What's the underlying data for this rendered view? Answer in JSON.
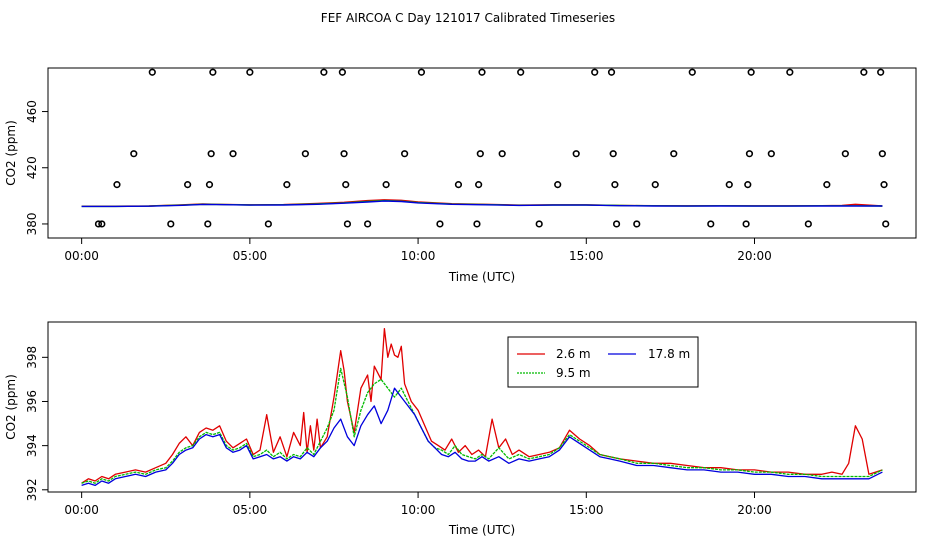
{
  "page": {
    "title": "FEF AIRCOA C  Day 121017  Calibrated Timeseries"
  },
  "colors": {
    "s1": "#e00000",
    "s2": "#00bb00",
    "s3": "#0000dd",
    "axis": "#000000"
  },
  "chart_data": [
    {
      "type": "scatter+line",
      "xlabel": "Time (UTC)",
      "ylabel": "CO2 (ppm)",
      "xlim": [
        -1.0,
        24.8
      ],
      "ylim": [
        370,
        491
      ],
      "xticks": [
        0,
        5,
        10,
        15,
        20
      ],
      "xtick_labels": [
        "00:00",
        "05:00",
        "10:00",
        "15:00",
        "20:00"
      ],
      "yticks": [
        380,
        420,
        460
      ],
      "ytick_labels": [
        "380",
        "420",
        "460"
      ],
      "scatter_points": [
        [
          0.5,
          380
        ],
        [
          0.6,
          380
        ],
        [
          1.05,
          408
        ],
        [
          1.55,
          430
        ],
        [
          2.1,
          488
        ],
        [
          2.65,
          380
        ],
        [
          3.15,
          408
        ],
        [
          3.75,
          380
        ],
        [
          3.8,
          408
        ],
        [
          3.85,
          430
        ],
        [
          3.9,
          488
        ],
        [
          4.5,
          430
        ],
        [
          5.0,
          488
        ],
        [
          5.55,
          380
        ],
        [
          6.1,
          408
        ],
        [
          6.65,
          430
        ],
        [
          7.2,
          488
        ],
        [
          7.75,
          488
        ],
        [
          7.8,
          430
        ],
        [
          7.85,
          408
        ],
        [
          7.9,
          380
        ],
        [
          8.5,
          380
        ],
        [
          9.05,
          408
        ],
        [
          9.6,
          430
        ],
        [
          10.1,
          488
        ],
        [
          10.65,
          380
        ],
        [
          11.2,
          408
        ],
        [
          11.75,
          380
        ],
        [
          11.8,
          408
        ],
        [
          11.85,
          430
        ],
        [
          11.9,
          488
        ],
        [
          12.5,
          430
        ],
        [
          13.05,
          488
        ],
        [
          13.6,
          380
        ],
        [
          14.15,
          408
        ],
        [
          14.7,
          430
        ],
        [
          15.25,
          488
        ],
        [
          15.75,
          488
        ],
        [
          15.8,
          430
        ],
        [
          15.85,
          408
        ],
        [
          15.9,
          380
        ],
        [
          16.5,
          380
        ],
        [
          17.05,
          408
        ],
        [
          17.6,
          430
        ],
        [
          18.15,
          488
        ],
        [
          18.7,
          380
        ],
        [
          19.25,
          408
        ],
        [
          19.75,
          380
        ],
        [
          19.8,
          408
        ],
        [
          19.85,
          430
        ],
        [
          19.9,
          488
        ],
        [
          20.5,
          430
        ],
        [
          21.05,
          488
        ],
        [
          21.6,
          380
        ],
        [
          22.15,
          408
        ],
        [
          22.7,
          430
        ],
        [
          23.25,
          488
        ],
        [
          23.75,
          488
        ],
        [
          23.8,
          430
        ],
        [
          23.85,
          408
        ],
        [
          23.9,
          380
        ]
      ],
      "series": [
        {
          "name": "2.6 m",
          "color": "#e00000",
          "x": [
            0.0,
            1.0,
            2.0,
            3.0,
            3.6,
            4.0,
            5.0,
            6.0,
            7.0,
            7.8,
            8.5,
            9.0,
            9.5,
            10.0,
            11.0,
            12.0,
            13.0,
            14.0,
            15.0,
            16.0,
            17.0,
            18.0,
            19.0,
            20.0,
            21.0,
            22.0,
            22.6,
            23.0,
            23.8
          ],
          "y": [
            392.6,
            392.6,
            392.8,
            393.6,
            394.2,
            394.0,
            393.6,
            393.8,
            394.6,
            395.4,
            396.6,
            397.2,
            396.8,
            395.6,
            394.4,
            394.0,
            393.4,
            393.6,
            393.6,
            393.2,
            393.0,
            392.9,
            393.0,
            392.9,
            392.9,
            393.0,
            393.2,
            394.0,
            392.8
          ]
        },
        {
          "name": "9.5 m",
          "color": "#00bb00",
          "x": [
            0.0,
            1.0,
            2.0,
            3.0,
            3.6,
            4.0,
            5.0,
            6.0,
            7.0,
            7.8,
            8.5,
            9.0,
            9.5,
            10.0,
            11.0,
            12.0,
            13.0,
            14.0,
            15.0,
            16.0,
            17.0,
            18.0,
            19.0,
            20.0,
            21.0,
            22.0,
            23.0,
            23.8
          ],
          "y": [
            392.5,
            392.5,
            392.7,
            393.4,
            394.0,
            393.9,
            393.5,
            393.6,
            394.2,
            395.0,
            396.0,
            396.6,
            396.2,
            395.2,
            394.1,
            393.8,
            393.3,
            393.5,
            393.5,
            393.1,
            392.9,
            392.8,
            392.9,
            392.8,
            392.8,
            392.9,
            392.9,
            392.8
          ]
        },
        {
          "name": "17.8 m",
          "color": "#0000dd",
          "x": [
            0.0,
            1.0,
            2.0,
            3.0,
            3.6,
            4.0,
            5.0,
            6.0,
            7.0,
            7.8,
            8.5,
            9.0,
            9.5,
            10.0,
            11.0,
            12.0,
            13.0,
            14.0,
            15.0,
            16.0,
            17.0,
            18.0,
            19.0,
            20.0,
            21.0,
            22.0,
            23.0,
            23.8
          ],
          "y": [
            392.5,
            392.5,
            392.6,
            393.3,
            393.9,
            393.8,
            393.4,
            393.5,
            394.0,
            394.8,
            395.6,
            396.3,
            396.0,
            395.0,
            394.0,
            393.6,
            393.2,
            393.4,
            393.4,
            393.0,
            392.8,
            392.7,
            392.8,
            392.7,
            392.7,
            392.8,
            392.8,
            392.8
          ]
        }
      ]
    },
    {
      "type": "line",
      "xlabel": "Time (UTC)",
      "ylabel": "CO2 (ppm)",
      "xlim": [
        -1.0,
        24.8
      ],
      "ylim": [
        391.9,
        399.6
      ],
      "xticks": [
        0,
        5,
        10,
        15,
        20
      ],
      "xtick_labels": [
        "00:00",
        "05:00",
        "10:00",
        "15:00",
        "20:00"
      ],
      "yticks": [
        392,
        394,
        396,
        398
      ],
      "ytick_labels": [
        "392",
        "394",
        "396",
        "398"
      ],
      "legend": {
        "position": "top-center",
        "entries": [
          "2.6 m",
          "17.8 m",
          "9.5 m"
        ]
      },
      "series": [
        {
          "name": "2.6 m",
          "color": "#e00000",
          "x": [
            0.0,
            0.2,
            0.4,
            0.6,
            0.8,
            1.0,
            1.3,
            1.6,
            1.9,
            2.2,
            2.5,
            2.7,
            2.9,
            3.1,
            3.3,
            3.5,
            3.7,
            3.9,
            4.1,
            4.3,
            4.5,
            4.7,
            4.9,
            5.1,
            5.3,
            5.5,
            5.7,
            5.9,
            6.1,
            6.3,
            6.5,
            6.6,
            6.7,
            6.8,
            6.9,
            7.0,
            7.1,
            7.3,
            7.5,
            7.7,
            7.8,
            7.9,
            8.1,
            8.3,
            8.5,
            8.6,
            8.7,
            8.9,
            9.0,
            9.1,
            9.2,
            9.3,
            9.4,
            9.5,
            9.6,
            9.8,
            10.0,
            10.2,
            10.4,
            10.6,
            10.8,
            11.0,
            11.2,
            11.4,
            11.6,
            11.8,
            12.0,
            12.2,
            12.4,
            12.6,
            12.8,
            13.0,
            13.3,
            13.6,
            13.9,
            14.2,
            14.5,
            14.8,
            15.1,
            15.4,
            15.7,
            16.0,
            16.5,
            17.0,
            17.5,
            18.0,
            18.5,
            19.0,
            19.5,
            20.0,
            20.5,
            21.0,
            21.5,
            22.0,
            22.3,
            22.6,
            22.8,
            23.0,
            23.2,
            23.4,
            23.6,
            23.8
          ],
          "y": [
            392.3,
            392.5,
            392.4,
            392.6,
            392.5,
            392.7,
            392.8,
            392.9,
            392.8,
            393.0,
            393.2,
            393.6,
            394.1,
            394.4,
            394.0,
            394.6,
            394.8,
            394.7,
            394.9,
            394.2,
            393.9,
            394.1,
            394.3,
            393.6,
            393.8,
            395.4,
            393.7,
            394.4,
            393.5,
            394.6,
            394.0,
            395.5,
            393.7,
            394.9,
            393.8,
            395.2,
            393.9,
            394.4,
            396.2,
            398.3,
            397.4,
            396.0,
            394.6,
            396.6,
            397.2,
            396.0,
            397.6,
            397.0,
            399.3,
            398.0,
            398.6,
            398.1,
            398.0,
            398.5,
            396.8,
            396.0,
            395.6,
            394.9,
            394.2,
            394.0,
            393.8,
            394.3,
            393.7,
            394.0,
            393.6,
            393.8,
            393.5,
            395.2,
            393.9,
            394.3,
            393.6,
            393.8,
            393.5,
            393.6,
            393.7,
            393.9,
            394.7,
            394.3,
            394.0,
            393.6,
            393.5,
            393.4,
            393.3,
            393.2,
            393.2,
            393.1,
            393.0,
            393.0,
            392.9,
            392.9,
            392.8,
            392.8,
            392.7,
            392.7,
            392.8,
            392.7,
            393.2,
            394.9,
            394.3,
            392.7,
            392.8,
            392.9
          ]
        },
        {
          "name": "9.5 m",
          "color": "#00bb00",
          "x": [
            0.0,
            0.2,
            0.4,
            0.6,
            0.8,
            1.0,
            1.3,
            1.6,
            1.9,
            2.2,
            2.5,
            2.7,
            2.9,
            3.1,
            3.3,
            3.5,
            3.7,
            3.9,
            4.1,
            4.3,
            4.5,
            4.7,
            4.9,
            5.1,
            5.3,
            5.5,
            5.7,
            5.9,
            6.1,
            6.3,
            6.5,
            6.7,
            6.9,
            7.1,
            7.3,
            7.5,
            7.7,
            7.9,
            8.1,
            8.3,
            8.5,
            8.7,
            8.9,
            9.1,
            9.3,
            9.5,
            9.7,
            9.9,
            10.1,
            10.3,
            10.5,
            10.7,
            10.9,
            11.1,
            11.3,
            11.5,
            11.7,
            11.9,
            12.1,
            12.4,
            12.7,
            13.0,
            13.3,
            13.6,
            13.9,
            14.2,
            14.5,
            14.8,
            15.1,
            15.4,
            15.7,
            16.0,
            16.5,
            17.0,
            17.5,
            18.0,
            18.5,
            19.0,
            19.5,
            20.0,
            20.5,
            21.0,
            21.5,
            22.0,
            22.5,
            23.0,
            23.4,
            23.8
          ],
          "y": [
            392.3,
            392.4,
            392.3,
            392.5,
            392.4,
            392.6,
            392.7,
            392.8,
            392.7,
            392.9,
            393.0,
            393.3,
            393.7,
            393.9,
            394.0,
            394.4,
            394.6,
            394.5,
            394.6,
            394.0,
            393.8,
            393.9,
            394.1,
            393.5,
            393.6,
            393.8,
            393.5,
            393.7,
            393.4,
            393.6,
            393.5,
            393.9,
            393.6,
            394.2,
            394.8,
            395.6,
            397.5,
            396.2,
            394.4,
            395.6,
            396.4,
            396.8,
            397.0,
            396.6,
            396.2,
            396.6,
            396.0,
            395.4,
            394.8,
            394.2,
            393.9,
            393.8,
            393.6,
            394.0,
            393.6,
            393.5,
            393.4,
            393.6,
            393.4,
            393.9,
            393.4,
            393.6,
            393.4,
            393.5,
            393.6,
            393.9,
            394.5,
            394.2,
            393.9,
            393.6,
            393.5,
            393.4,
            393.2,
            393.2,
            393.1,
            393.0,
            393.0,
            392.9,
            392.9,
            392.8,
            392.8,
            392.7,
            392.7,
            392.6,
            392.6,
            392.6,
            392.6,
            392.9
          ]
        },
        {
          "name": "17.8 m",
          "color": "#0000dd",
          "x": [
            0.0,
            0.2,
            0.4,
            0.6,
            0.8,
            1.0,
            1.3,
            1.6,
            1.9,
            2.2,
            2.5,
            2.7,
            2.9,
            3.1,
            3.3,
            3.5,
            3.7,
            3.9,
            4.1,
            4.3,
            4.5,
            4.7,
            4.9,
            5.1,
            5.3,
            5.5,
            5.7,
            5.9,
            6.1,
            6.3,
            6.5,
            6.7,
            6.9,
            7.1,
            7.3,
            7.5,
            7.7,
            7.9,
            8.1,
            8.3,
            8.5,
            8.7,
            8.9,
            9.1,
            9.3,
            9.5,
            9.7,
            9.9,
            10.1,
            10.3,
            10.5,
            10.7,
            10.9,
            11.1,
            11.3,
            11.5,
            11.7,
            11.9,
            12.1,
            12.4,
            12.7,
            13.0,
            13.3,
            13.6,
            13.9,
            14.2,
            14.5,
            14.8,
            15.1,
            15.4,
            15.7,
            16.0,
            16.5,
            17.0,
            17.5,
            18.0,
            18.5,
            19.0,
            19.5,
            20.0,
            20.5,
            21.0,
            21.5,
            22.0,
            22.5,
            23.0,
            23.4,
            23.8
          ],
          "y": [
            392.2,
            392.3,
            392.2,
            392.4,
            392.3,
            392.5,
            392.6,
            392.7,
            392.6,
            392.8,
            392.9,
            393.2,
            393.6,
            393.8,
            393.9,
            394.3,
            394.5,
            394.4,
            394.5,
            393.9,
            393.7,
            393.8,
            394.0,
            393.4,
            393.5,
            393.6,
            393.4,
            393.5,
            393.3,
            393.5,
            393.4,
            393.7,
            393.5,
            393.9,
            394.2,
            394.8,
            395.2,
            394.4,
            394.0,
            394.9,
            395.4,
            395.8,
            395.0,
            395.6,
            396.6,
            396.2,
            395.8,
            395.4,
            394.8,
            394.2,
            393.9,
            393.6,
            393.5,
            393.7,
            393.4,
            393.3,
            393.3,
            393.5,
            393.3,
            393.5,
            393.2,
            393.4,
            393.3,
            393.4,
            393.5,
            393.8,
            394.4,
            394.1,
            393.8,
            393.5,
            393.4,
            393.3,
            393.1,
            393.1,
            393.0,
            392.9,
            392.9,
            392.8,
            392.8,
            392.7,
            392.7,
            392.6,
            392.6,
            392.5,
            392.5,
            392.5,
            392.5,
            392.8
          ]
        }
      ]
    }
  ]
}
